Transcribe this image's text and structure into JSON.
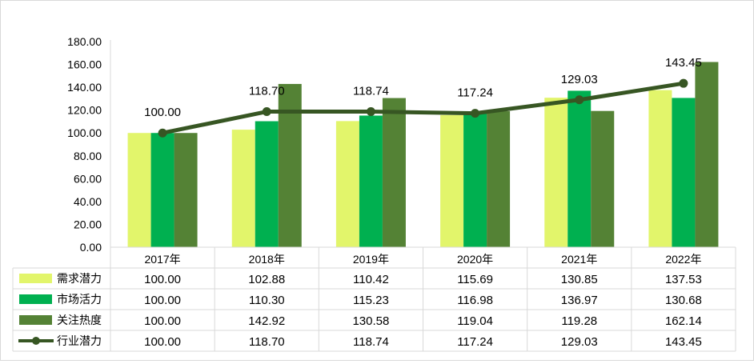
{
  "chart_data": {
    "type": "bar",
    "categories": [
      "2017年",
      "2018年",
      "2019年",
      "2020年",
      "2021年",
      "2022年"
    ],
    "series": [
      {
        "name": "需求潜力",
        "type": "bar",
        "color": "#e2f56b",
        "values": [
          100.0,
          102.88,
          110.42,
          115.69,
          130.85,
          137.53
        ]
      },
      {
        "name": "市场活力",
        "type": "bar",
        "color": "#00b050",
        "values": [
          100.0,
          110.3,
          115.23,
          116.98,
          136.97,
          130.68
        ]
      },
      {
        "name": "关注热度",
        "type": "bar",
        "color": "#548235",
        "values": [
          100.0,
          142.92,
          130.58,
          119.04,
          119.28,
          162.14
        ]
      },
      {
        "name": "行业潜力",
        "type": "line",
        "color": "#375623",
        "values": [
          100.0,
          118.7,
          118.74,
          117.24,
          129.03,
          143.45
        ]
      }
    ],
    "line_data_labels": [
      "100.00",
      "118.70",
      "118.74",
      "117.24",
      "129.03",
      "143.45"
    ],
    "table_values": [
      [
        "100.00",
        "102.88",
        "110.42",
        "115.69",
        "130.85",
        "137.53"
      ],
      [
        "100.00",
        "110.30",
        "115.23",
        "116.98",
        "136.97",
        "130.68"
      ],
      [
        "100.00",
        "142.92",
        "130.58",
        "119.04",
        "119.28",
        "162.14"
      ],
      [
        "100.00",
        "118.70",
        "118.74",
        "117.24",
        "129.03",
        "143.45"
      ]
    ],
    "y_ticks": [
      "0.00",
      "20.00",
      "40.00",
      "60.00",
      "80.00",
      "100.00",
      "120.00",
      "140.00",
      "160.00",
      "180.00"
    ],
    "ylim": [
      0,
      180
    ],
    "grid": false,
    "legend": "data-table",
    "title": "",
    "xlabel": "",
    "ylabel": ""
  }
}
